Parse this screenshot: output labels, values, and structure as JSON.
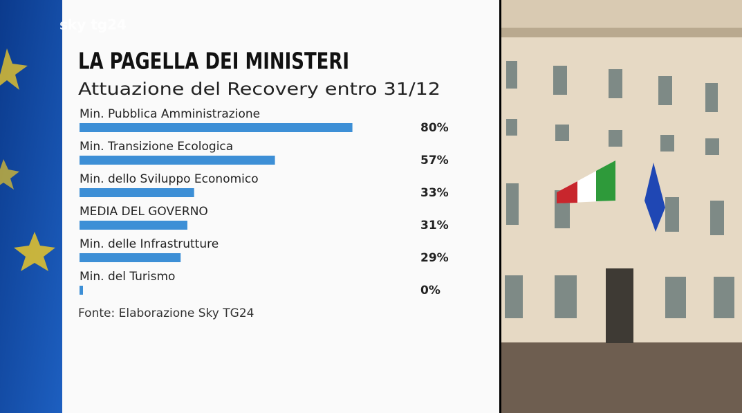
{
  "logo": "sky tg24",
  "chart_data": {
    "type": "bar",
    "orientation": "horizontal",
    "title": "LA PAGELLA DEI MINISTERI",
    "subtitle": "Attuazione del Recovery entro 31/12",
    "categories": [
      "Min. Pubblica Amministrazione",
      "Min. Transizione Ecologica",
      "Min. dello Sviluppo Economico",
      "MEDIA DEL GOVERNO",
      "Min. delle Infrastrutture",
      "Min. del Turismo"
    ],
    "values": [
      80,
      57,
      33,
      31,
      29,
      0
    ],
    "value_labels": [
      "80%",
      "57%",
      "33%",
      "31%",
      "29%",
      "0%"
    ],
    "color": "#3d8fd6",
    "source": "Fonte: Elaborazione Sky TG24"
  }
}
